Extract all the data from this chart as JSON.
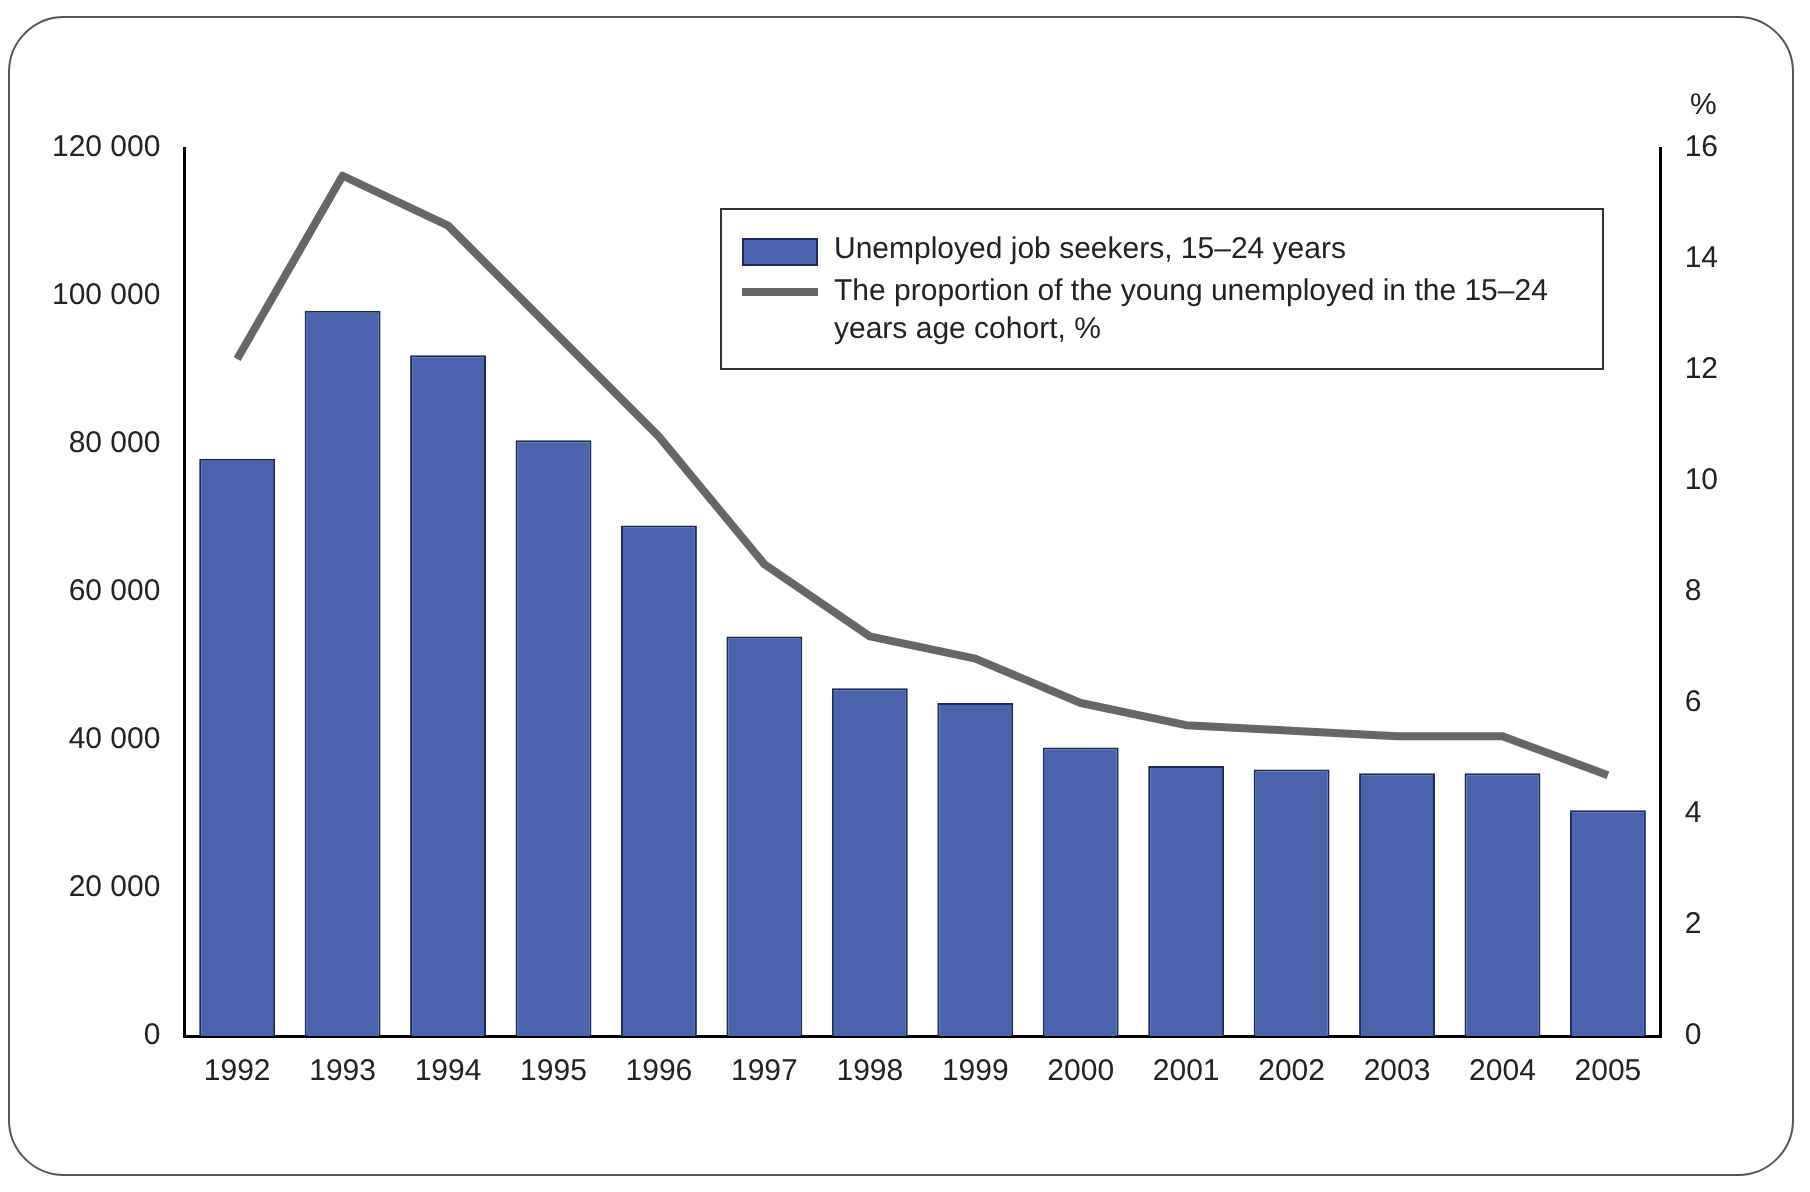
{
  "chart_data": {
    "type": "bar",
    "categories": [
      "1992",
      "1993",
      "1994",
      "1995",
      "1996",
      "1997",
      "1998",
      "1999",
      "2000",
      "2001",
      "2002",
      "2003",
      "2004",
      "2005"
    ],
    "series": [
      {
        "name": "Unemployed job seekers, 15–24 years",
        "color": "#4a63ad",
        "values": [
          78000,
          98000,
          92000,
          80500,
          69000,
          54000,
          47000,
          45000,
          39000,
          36500,
          36000,
          35500,
          35500,
          30500
        ]
      },
      {
        "name": "The proportion of the young unemployed in the 15–24 years age cohort, %",
        "type": "line",
        "axis": "y2",
        "color": "#666666",
        "values": [
          12.2,
          15.5,
          14.6,
          12.7,
          10.8,
          8.5,
          7.2,
          6.8,
          6.0,
          5.6,
          5.5,
          5.4,
          5.4,
          4.7
        ]
      }
    ],
    "ylim": [
      0,
      120000
    ],
    "yticks": [
      {
        "value": 0,
        "label": "0"
      },
      {
        "value": 20000,
        "label": "20 000"
      },
      {
        "value": 40000,
        "label": "40 000"
      },
      {
        "value": 60000,
        "label": "60 000"
      },
      {
        "value": 80000,
        "label": "80 000"
      },
      {
        "value": 100000,
        "label": "100 000"
      },
      {
        "value": 120000,
        "label": "120 000"
      }
    ],
    "y2lim": [
      0,
      16
    ],
    "y2ticks": [
      0,
      2,
      4,
      6,
      8,
      10,
      12,
      14,
      16
    ],
    "y2label": "%",
    "grid": false,
    "legend": "top right",
    "marker": "none"
  }
}
